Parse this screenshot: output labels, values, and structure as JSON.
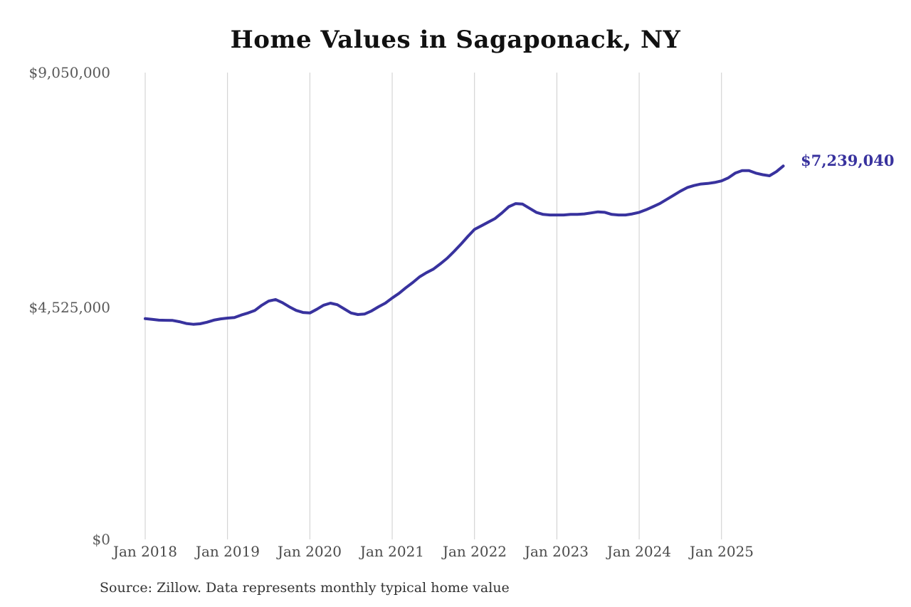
{
  "page": {
    "background_color": "#ffffff"
  },
  "chart_data": {
    "type": "line",
    "title": "Home Values in Sagaponack, NY",
    "series_name": "Monthly typical home value",
    "x_start": "2018-01",
    "x_end": "2025-10",
    "frequency": "monthly",
    "values": [
      4280000,
      4265000,
      4250000,
      4248000,
      4245000,
      4220000,
      4185000,
      4170000,
      4180000,
      4210000,
      4250000,
      4275000,
      4290000,
      4302000,
      4350000,
      4390000,
      4440000,
      4540000,
      4620000,
      4650000,
      4590000,
      4510000,
      4440000,
      4400000,
      4390000,
      4460000,
      4540000,
      4580000,
      4550000,
      4470000,
      4390000,
      4360000,
      4370000,
      4430000,
      4510000,
      4580000,
      4680000,
      4770000,
      4880000,
      4980000,
      5090000,
      5170000,
      5240000,
      5340000,
      5450000,
      5580000,
      5720000,
      5870000,
      6010000,
      6080000,
      6150000,
      6220000,
      6330000,
      6450000,
      6510000,
      6500000,
      6420000,
      6340000,
      6300000,
      6290000,
      6290000,
      6290000,
      6300000,
      6300000,
      6310000,
      6330000,
      6350000,
      6340000,
      6300000,
      6290000,
      6290000,
      6310000,
      6340000,
      6390000,
      6450000,
      6510000,
      6590000,
      6670000,
      6750000,
      6820000,
      6860000,
      6890000,
      6900000,
      6920000,
      6950000,
      7010000,
      7100000,
      7150000,
      7150000,
      7100000,
      7070000,
      7050000,
      7130000,
      7239040
    ],
    "last_value": 7239040,
    "end_label": "$7,239,040",
    "ylim": [
      0,
      9050000
    ],
    "y_ticks": [
      0,
      4525000,
      9050000
    ],
    "y_tick_labels": [
      "$0",
      "$4,525,000",
      "$9,050,000"
    ],
    "x_gridline_years": [
      2018,
      2019,
      2020,
      2021,
      2022,
      2023,
      2024,
      2025
    ],
    "x_tick_labels": [
      "Jan 2018",
      "Jan 2019",
      "Jan 2020",
      "Jan 2021",
      "Jan 2022",
      "Jan 2023",
      "Jan 2024",
      "Jan 2025"
    ],
    "grid": "vertical-only",
    "legend": "none",
    "line_color": "#38329e",
    "gridline_color": "#cccccc"
  },
  "footer": {
    "source": "Source: Zillow. Data represents monthly typical home value"
  }
}
